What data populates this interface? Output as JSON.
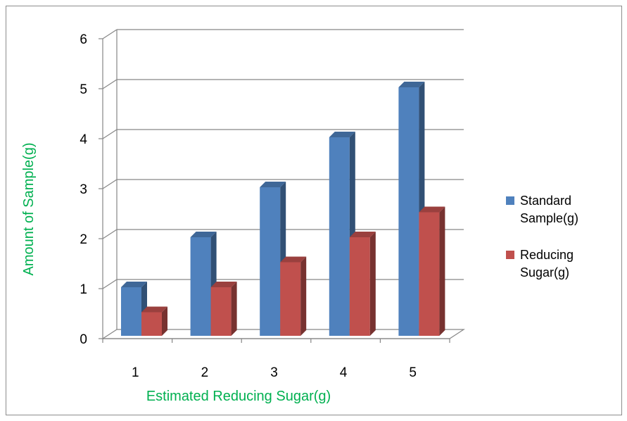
{
  "chart_data": {
    "type": "bar",
    "categories": [
      "1",
      "2",
      "3",
      "4",
      "5"
    ],
    "series": [
      {
        "name": "Standard Sample(g)",
        "values": [
          1,
          2,
          3,
          4,
          5
        ],
        "color": "#4f81bd"
      },
      {
        "name": "Reducing Sugar(g)",
        "values": [
          0.5,
          1,
          1.5,
          2,
          2.5
        ],
        "color": "#c0504d"
      }
    ],
    "title": "",
    "xlabel": "Estimated Reducing Sugar(g)",
    "ylabel": "Amount of Sample(g)",
    "ylim": [
      0,
      6
    ],
    "yticks": [
      "0",
      "1",
      "2",
      "3",
      "4",
      "5",
      "6"
    ],
    "grid": true,
    "legend_position": "right",
    "axis_title_color": "#00b050",
    "style": "3d-clustered-column"
  }
}
